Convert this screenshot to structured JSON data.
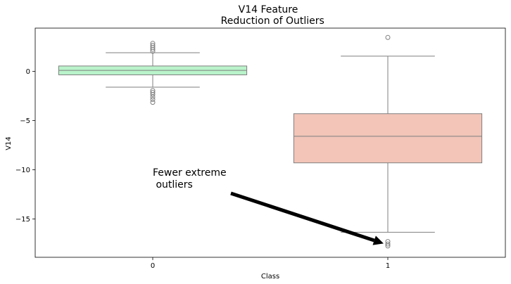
{
  "chart_data": {
    "type": "box",
    "title": "V14 Feature\n Reduction of Outliers",
    "title_lines": [
      "V14 Feature",
      " Reduction of Outliers"
    ],
    "xlabel": "Class",
    "ylabel": "V14",
    "categories": [
      "0",
      "1"
    ],
    "ylim": [
      -18.9,
      4.4
    ],
    "yticks": [
      0,
      -5,
      -10,
      -15
    ],
    "ytick_labels": [
      "0",
      "−5",
      "−10",
      "−15"
    ],
    "colors": {
      "class_0": "#b9f3ca",
      "class_1": "#f2c5b8",
      "line": "#7f7f7f",
      "arrow": "#000000"
    },
    "boxes": [
      {
        "category": "0",
        "whisker_low": -1.6,
        "q1": -0.35,
        "median": 0.1,
        "q3": 0.55,
        "whisker_high": 1.9,
        "outliers": [
          2.05,
          2.25,
          2.45,
          2.65,
          2.85,
          -1.95,
          -2.15,
          -2.35,
          -2.6,
          -2.85,
          -3.15
        ]
      },
      {
        "category": "1",
        "whisker_low": -16.35,
        "q1": -9.3,
        "median": -6.6,
        "q3": -4.3,
        "whisker_high": 1.55,
        "outliers": [
          3.45,
          -17.3,
          -17.55,
          -17.75
        ]
      }
    ],
    "annotation": {
      "lines": [
        "Fewer extreme",
        " outliers"
      ],
      "text_at": [
        -0.3,
        -10.6
      ],
      "arrow_to": [
        1,
        -17.5
      ]
    }
  }
}
